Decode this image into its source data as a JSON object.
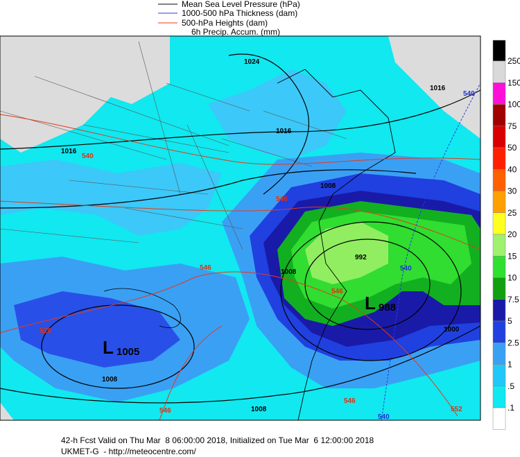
{
  "legend": {
    "items": [
      "Mean Sea Level Pressure (hPa)",
      "1000-500 hPa Thickness (dam)",
      "500-hPa Heights (dam)",
      "6h Precip. Accum. (mm)"
    ]
  },
  "colorbar": {
    "labels": [
      "250",
      "150",
      "100",
      "75",
      "50",
      "40",
      "30",
      "25",
      "20",
      "15",
      "10",
      "7.5",
      "5",
      "2.5",
      "1",
      ".5",
      ".1"
    ]
  },
  "map": {
    "labels": [
      "1024",
      "1016",
      "1016",
      "1016",
      "540",
      "546",
      "1008",
      "992",
      "1008",
      "546",
      "988",
      "1005",
      "1008",
      "528",
      "546",
      "546",
      "1008",
      "546",
      "540",
      "552",
      "1000",
      "540",
      "540",
      "L",
      "L"
    ]
  },
  "footer": {
    "line1": "42-h Fcst Valid on Thu Mar  8 06:00:00 2018, Initialized on Tue Mar  6 12:00:00 2018",
    "line2": "UKMET-G  - http://meteocentre.com/"
  }
}
